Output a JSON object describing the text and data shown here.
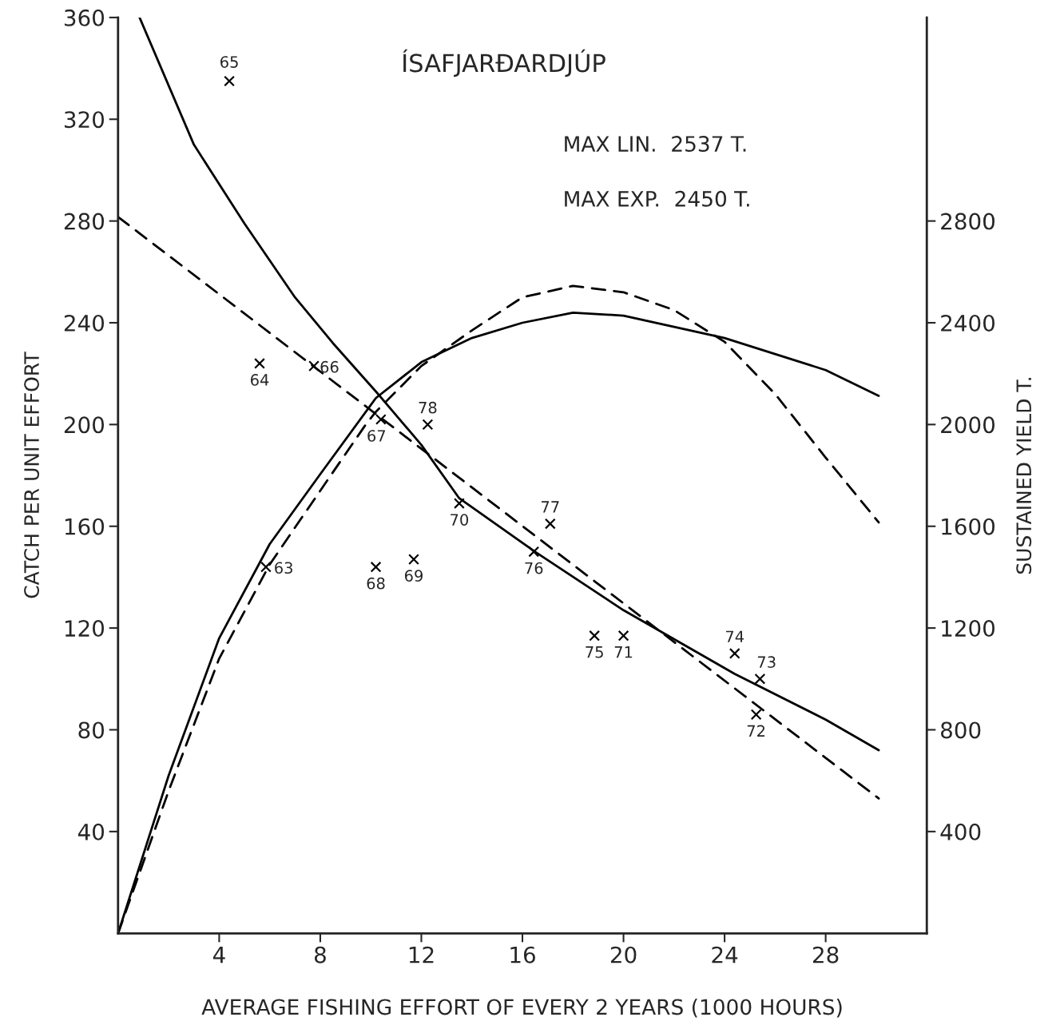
{
  "chart_data": {
    "type": "line",
    "title": "ÍSAFJARÐARDJÚP",
    "xlabel": "AVERAGE FISHING EFFORT OF EVERY 2 YEARS (1000 HOURS)",
    "ylabel": "CATCH PER UNIT EFFORT",
    "y2label": "SUSTAINED YIELD T.",
    "annotations": [
      "MAX LIN.  2537 T.",
      "MAX EXP.  2450 T.",
      {
        "text": "65",
        "x": 4.4,
        "y": 335
      },
      {
        "text": "64",
        "x": 5.6,
        "y": 224
      },
      {
        "text": "66",
        "x": 7.75,
        "y": 223
      },
      {
        "text": "67",
        "x": 10.4,
        "y": 202
      },
      {
        "text": "78",
        "x": 12.25,
        "y": 200
      },
      {
        "text": "70",
        "x": 13.5,
        "y": 169
      },
      {
        "text": "77",
        "x": 17.1,
        "y": 161
      },
      {
        "text": "76",
        "x": 16.45,
        "y": 150
      },
      {
        "text": "63",
        "x": 5.85,
        "y": 144
      },
      {
        "text": "68",
        "x": 10.2,
        "y": 144
      },
      {
        "text": "69",
        "x": 11.7,
        "y": 147
      },
      {
        "text": "75",
        "x": 18.85,
        "y": 117
      },
      {
        "text": "71",
        "x": 20.0,
        "y": 117
      },
      {
        "text": "74",
        "x": 24.4,
        "y": 110
      },
      {
        "text": "73",
        "x": 25.4,
        "y": 100
      },
      {
        "text": "72",
        "x": 25.25,
        "y": 86
      }
    ],
    "xlim": [
      0,
      32
    ],
    "xticks": [
      4,
      8,
      12,
      16,
      20,
      24,
      28
    ],
    "ylim": [
      0,
      360
    ],
    "yticks": [
      40,
      80,
      120,
      160,
      200,
      240,
      280,
      320,
      360
    ],
    "y2lim": [
      0,
      3600
    ],
    "y2ticks": [
      400,
      800,
      1200,
      1600,
      2000,
      2400,
      2800
    ],
    "grid": false,
    "series": [
      {
        "type": "scatter",
        "marker": "cross",
        "color": "#000000",
        "x": [
          4.4,
          5.6,
          7.75,
          10.4,
          12.25,
          13.5,
          17.1,
          16.45,
          5.85,
          10.2,
          11.7,
          18.85,
          20.0,
          24.4,
          25.4,
          25.25
        ],
        "values": [
          335,
          224,
          223,
          202,
          200,
          169,
          161,
          150,
          144,
          144,
          147,
          117,
          117,
          110,
          100,
          86
        ]
      },
      {
        "line_style": "solid",
        "color": "#000000",
        "x": [
          0.85,
          3,
          5,
          7,
          8.5,
          10.2,
          12,
          13.5,
          16.5,
          20,
          24.4,
          28,
          30.1
        ],
        "values": [
          360,
          310,
          279,
          250,
          232,
          213,
          192,
          171,
          150,
          127,
          102,
          84,
          72
        ]
      },
      {
        "line_style": "dashed",
        "color": "#000000",
        "x": [
          0,
          30.1
        ],
        "values": [
          281.6,
          53
        ]
      },
      {
        "line_style": "solid",
        "axis": "y2",
        "color": "#000000",
        "x": [
          0,
          2,
          4,
          6,
          8,
          10.2,
          12,
          14,
          16,
          18,
          20,
          24,
          28,
          30.1
        ],
        "values": [
          0,
          620,
          1160,
          1530,
          1805,
          2104,
          2245,
          2340,
          2400,
          2440,
          2428,
          2340,
          2214,
          2113
        ]
      },
      {
        "line_style": "dashed",
        "axis": "y2",
        "color": "#000000",
        "x": [
          0,
          2,
          4,
          6,
          8,
          9.8,
          10.2,
          12,
          14,
          16,
          18,
          20,
          22,
          24,
          26,
          28,
          30.1
        ],
        "values": [
          0,
          560,
          1080,
          1450,
          1740,
          2000,
          2050,
          2230,
          2370,
          2500,
          2545,
          2520,
          2450,
          2325,
          2120,
          1870,
          1615
        ]
      }
    ]
  }
}
